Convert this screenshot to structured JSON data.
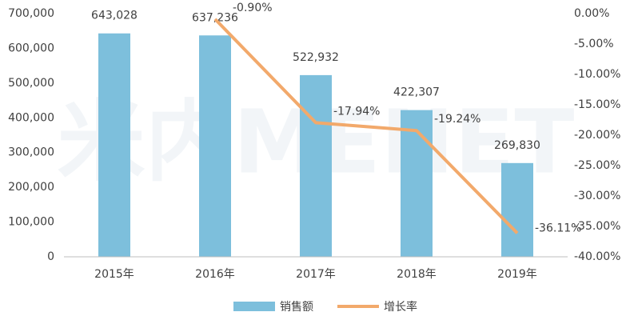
{
  "chart_data": {
    "type": "bar",
    "watermark": "米内MENET",
    "categories": [
      "2015年",
      "2016年",
      "2017年",
      "2018年",
      "2019年"
    ],
    "series": [
      {
        "name": "销售额",
        "type": "bar",
        "color": "#7dbfdc",
        "values": [
          643028,
          637236,
          522932,
          422307,
          269830
        ],
        "value_labels": [
          "643,028",
          "637,236",
          "522,932",
          "422,307",
          "269,830"
        ]
      },
      {
        "name": "增长率",
        "type": "line",
        "axis": "y2",
        "color": "#f2a96b",
        "values": [
          null,
          -0.9,
          -17.94,
          -19.24,
          -36.11
        ],
        "value_labels": [
          null,
          "-0.90%",
          "-17.94%",
          "-19.24%",
          "-36.11%"
        ]
      }
    ],
    "ylim": [
      0,
      700000
    ],
    "yticks": [
      0,
      {
        "value": 100000,
        "label": "100,000"
      },
      {
        "value": 200000,
        "label": "200,000"
      },
      {
        "value": 300000,
        "label": "300,000"
      },
      {
        "value": 400000,
        "label": "400,000"
      },
      {
        "value": 500000,
        "label": "500,000"
      },
      {
        "value": 600000,
        "label": "600,000"
      },
      {
        "value": 700000,
        "label": "700,000"
      }
    ],
    "y2lim": [
      -40,
      0
    ],
    "y2ticks": [
      {
        "value": 0,
        "label": "0.00%"
      },
      {
        "value": -5,
        "label": "-5.00%"
      },
      {
        "value": -10,
        "label": "-10.00%"
      },
      {
        "value": -15,
        "label": "-15.00%"
      },
      {
        "value": -20,
        "label": "-20.00%"
      },
      {
        "value": -25,
        "label": "-25.00%"
      },
      {
        "value": -30,
        "label": "-30.00%"
      },
      {
        "value": -35,
        "label": "-35.00%"
      },
      {
        "value": -40,
        "label": "-40.00%"
      }
    ],
    "legend": "bottom"
  }
}
